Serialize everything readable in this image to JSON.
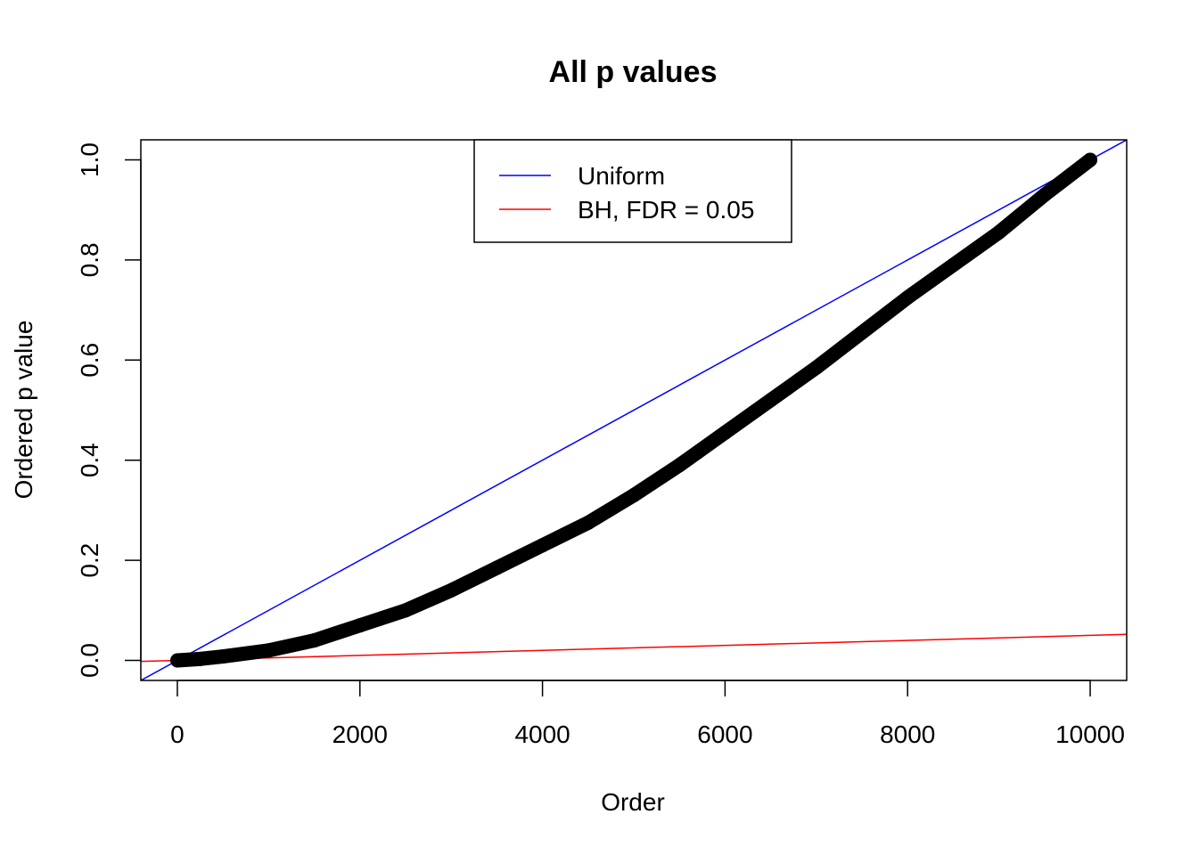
{
  "chart_data": {
    "type": "scatter",
    "title": "All p values",
    "xlabel": "Order",
    "ylabel": "Ordered p value",
    "xlim": [
      -400,
      10400
    ],
    "ylim": [
      -0.04,
      1.04
    ],
    "x_ticks": [
      0,
      2000,
      4000,
      6000,
      8000,
      10000
    ],
    "x_tick_labels": [
      "0",
      "2000",
      "4000",
      "6000",
      "8000",
      "10000"
    ],
    "y_ticks": [
      0.0,
      0.2,
      0.4,
      0.6,
      0.8,
      1.0
    ],
    "y_tick_labels": [
      "0.0",
      "0.2",
      "0.4",
      "0.6",
      "0.8",
      "1.0"
    ],
    "grid": false,
    "legend_position": "top",
    "series": [
      {
        "name": "",
        "kind": "points",
        "color": "#000000",
        "x": [
          1,
          250,
          500,
          1000,
          1500,
          2000,
          2500,
          3000,
          3500,
          4000,
          4500,
          5000,
          5500,
          6000,
          6500,
          7000,
          7500,
          8000,
          8500,
          9000,
          9500,
          10000
        ],
        "y": [
          0.0,
          0.003,
          0.008,
          0.02,
          0.04,
          0.07,
          0.1,
          0.14,
          0.185,
          0.23,
          0.275,
          0.33,
          0.39,
          0.455,
          0.52,
          0.585,
          0.655,
          0.725,
          0.79,
          0.855,
          0.93,
          1.0
        ]
      },
      {
        "name": "Uniform",
        "kind": "abline",
        "color": "#0000ff",
        "intercept": 0,
        "slope": 0.0001
      },
      {
        "name": "BH, FDR = 0.05",
        "kind": "abline",
        "color": "#ff0000",
        "intercept": 0,
        "slope": 5e-06
      }
    ]
  }
}
